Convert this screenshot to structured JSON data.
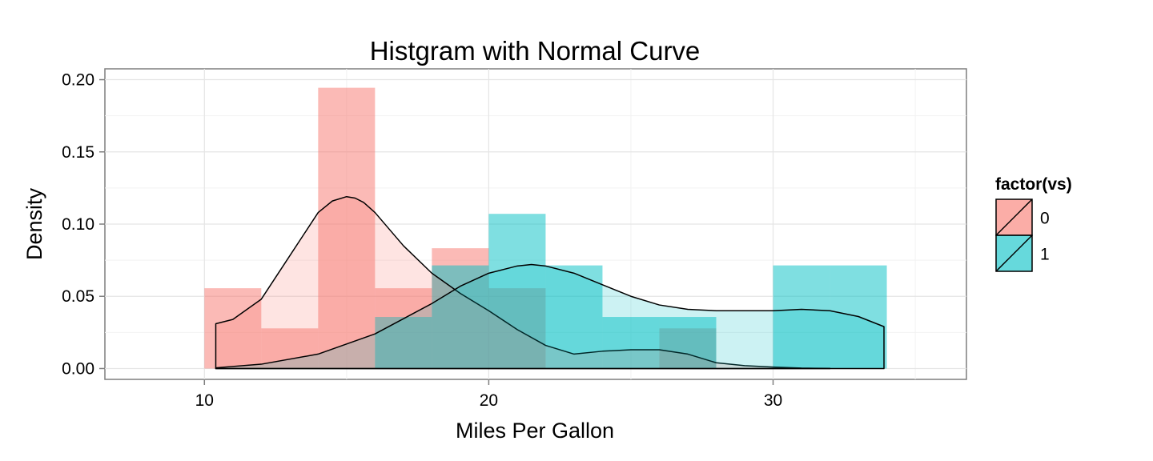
{
  "chart_data": {
    "type": "bar",
    "title": "Histgram with Normal Curve",
    "xlabel": "Miles Per Gallon",
    "ylabel": "Density",
    "xlim": [
      6.5,
      36.8
    ],
    "ylim": [
      -0.0075,
      0.2075
    ],
    "x_ticks": [
      10,
      20,
      30
    ],
    "x_tick_labels": [
      "10",
      "20",
      "30"
    ],
    "y_ticks": [
      0.0,
      0.05,
      0.1,
      0.15,
      0.2
    ],
    "y_tick_labels": [
      "0.00",
      "0.05",
      "0.10",
      "0.15",
      "0.20"
    ],
    "grid": true,
    "legend": {
      "title": "factor(vs)",
      "placement": "right",
      "entries": [
        "0",
        "1"
      ]
    },
    "bin_width": 2,
    "series": [
      {
        "name": "0",
        "color": "#F8766D",
        "bins": [
          {
            "x0": 10,
            "x1": 12,
            "density": 0.0556
          },
          {
            "x0": 12,
            "x1": 14,
            "density": 0.0278
          },
          {
            "x0": 14,
            "x1": 16,
            "density": 0.1944
          },
          {
            "x0": 16,
            "x1": 18,
            "density": 0.0556
          },
          {
            "x0": 18,
            "x1": 20,
            "density": 0.0833
          },
          {
            "x0": 20,
            "x1": 22,
            "density": 0.0556
          },
          {
            "x0": 26,
            "x1": 28,
            "density": 0.0278
          }
        ],
        "density_curve": {
          "x": [
            10.4,
            11,
            12,
            13,
            14,
            14.5,
            15,
            15.3,
            15.6,
            16,
            17,
            18,
            19,
            20,
            21,
            22,
            23,
            24,
            25,
            26,
            27,
            28,
            29,
            30,
            31,
            32
          ],
          "y": [
            0.031,
            0.034,
            0.048,
            0.078,
            0.108,
            0.116,
            0.119,
            0.118,
            0.115,
            0.108,
            0.085,
            0.066,
            0.052,
            0.04,
            0.027,
            0.016,
            0.01,
            0.012,
            0.013,
            0.013,
            0.01,
            0.004,
            0.002,
            0.001,
            0.0003,
            0.0001
          ]
        }
      },
      {
        "name": "1",
        "color": "#00BFC4",
        "bins": [
          {
            "x0": 16,
            "x1": 18,
            "density": 0.0357
          },
          {
            "x0": 18,
            "x1": 20,
            "density": 0.0714
          },
          {
            "x0": 20,
            "x1": 22,
            "density": 0.1071
          },
          {
            "x0": 22,
            "x1": 24,
            "density": 0.0714
          },
          {
            "x0": 24,
            "x1": 26,
            "density": 0.0357
          },
          {
            "x0": 26,
            "x1": 28,
            "density": 0.0357
          },
          {
            "x0": 30,
            "x1": 32,
            "density": 0.0714
          },
          {
            "x0": 32,
            "x1": 34,
            "density": 0.0714
          }
        ],
        "density_curve": {
          "x": [
            10.4,
            12,
            14,
            16,
            18,
            19,
            20,
            21,
            21.5,
            22,
            23,
            24,
            25,
            26,
            27,
            28,
            29,
            30,
            31,
            32,
            33,
            33.9
          ],
          "y": [
            0.0005,
            0.003,
            0.01,
            0.024,
            0.045,
            0.057,
            0.066,
            0.071,
            0.072,
            0.071,
            0.066,
            0.058,
            0.05,
            0.044,
            0.041,
            0.04,
            0.04,
            0.04,
            0.041,
            0.04,
            0.036,
            0.029
          ]
        }
      }
    ]
  }
}
